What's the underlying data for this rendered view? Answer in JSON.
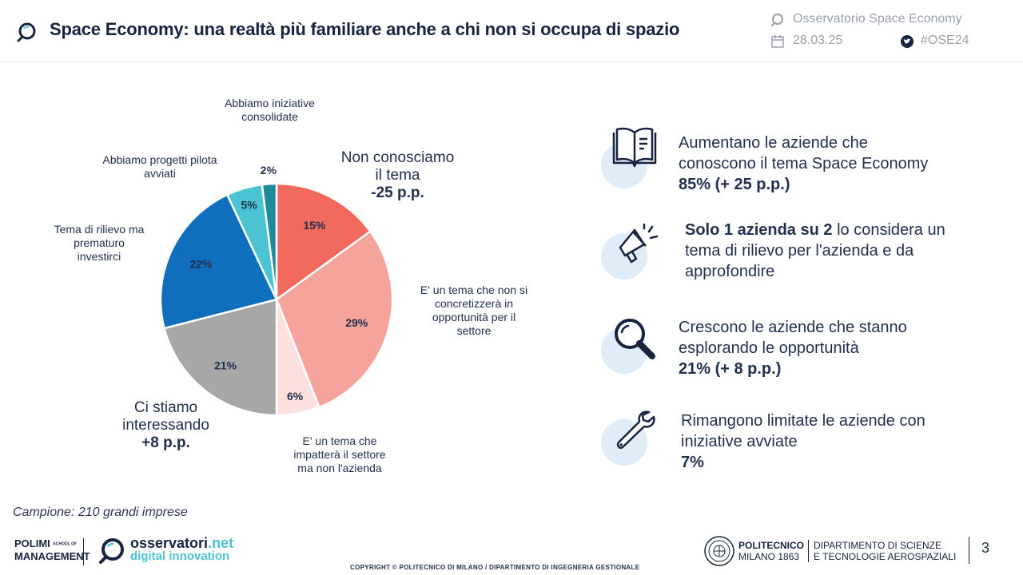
{
  "header": {
    "title": "Space Economy: una realtà più familiare anche a chi non si occupa di spazio",
    "source": "Osservatorio Space Economy",
    "date": "28.03.25",
    "hashtag": "#OSE24"
  },
  "chart_data": {
    "type": "pie",
    "slices": [
      {
        "label": "Non conosciamo il tema",
        "value": 15,
        "value_label": "15%",
        "color": "#f26a5e"
      },
      {
        "label": "E' un tema che non si concretizzerà in opportunità per il settore",
        "value": 29,
        "value_label": "29%",
        "color": "#f6a39b"
      },
      {
        "label": "E' un tema che impatterà il settore ma non l'azienda",
        "value": 6,
        "value_label": "6%",
        "color": "#fbe0dd"
      },
      {
        "label": "Ci stiamo interessando",
        "value": 21,
        "value_label": "21%",
        "color": "#a7a7a7"
      },
      {
        "label": "Tema di rilievo ma prematuro investirci",
        "value": 22,
        "value_label": "22%",
        "color": "#0f6fbd"
      },
      {
        "label": "Abbiamo progetti pilota avviati",
        "value": 5,
        "value_label": "5%",
        "color": "#4cc3d3"
      },
      {
        "label": "Abbiamo iniziative consolidate",
        "value": 2,
        "value_label": "2%",
        "color": "#1f8a9b"
      }
    ],
    "annotations": {
      "non_conosciamo_line1": "Non conosciamo",
      "non_conosciamo_line2": "il tema",
      "non_conosciamo_delta": "-25 p.p.",
      "concretizzera_line1": "E' un tema che non si",
      "concretizzera_line2": "concretizzerà in",
      "concretizzera_line3": "opportunità per il",
      "concretizzera_line4": "settore",
      "impattera_line1": "E' un tema che",
      "impattera_line2": "impatterà il settore",
      "impattera_line3": "ma non l'azienda",
      "interessando_line1": "Ci stiamo",
      "interessando_line2": "interessando",
      "interessando_delta": "+8 p.p.",
      "rilievo_line1": "Tema di rilievo ma",
      "rilievo_line2": "prematuro",
      "rilievo_line3": "investirci",
      "pilota_line1": "Abbiamo progetti pilota",
      "pilota_line2": "avviati",
      "consolidate_line1": "Abbiamo iniziative",
      "consolidate_line2": "consolidate"
    }
  },
  "findings": [
    {
      "icon": "book-icon",
      "line1": "Aumentano le aziende che",
      "line2": "conoscono il tema Space Economy",
      "line3": "85% (+ 25 p.p.)"
    },
    {
      "icon": "megaphone-icon",
      "bold": "Solo 1 azienda su 2",
      "line1_rest": " lo considera un",
      "line2": "tema di rilievo per l'azienda e da",
      "line3": "approfondire"
    },
    {
      "icon": "magnifier-icon",
      "line1": "Crescono le aziende che stanno",
      "line2": "esplorando le opportunità",
      "line3": "21% (+ 8 p.p.)"
    },
    {
      "icon": "wrench-icon",
      "line1": "Rimangono limitate le aziende con",
      "line2": "iniziative avviate",
      "line3": "7%"
    }
  ],
  "footer": {
    "sample": "Campione: 210 grandi imprese",
    "polimi_line1": "POLIMI",
    "polimi_small1": "SCHOOL OF",
    "polimi_line2": "MANAGEMENT",
    "osservatori_name": "osservatori",
    "osservatori_tld": ".net",
    "osservatori_sub": "digital innovation",
    "politecnico_line1": "POLITECNICO",
    "politecnico_line2": "MILANO 1863",
    "dipartimento_line1": "DIPARTIMENTO DI SCIENZE",
    "dipartimento_line2": "E TECNOLOGIE AEROSPAZIALI",
    "page_number": "3",
    "copyright": "COPYRIGHT © POLITECNICO DI MILANO / DIPARTIMENTO DI INGEGNERIA GESTIONALE"
  },
  "colors": {
    "navy": "#17233f",
    "accent_light_blue": "#deedf8",
    "muted": "#9aa1ad"
  }
}
